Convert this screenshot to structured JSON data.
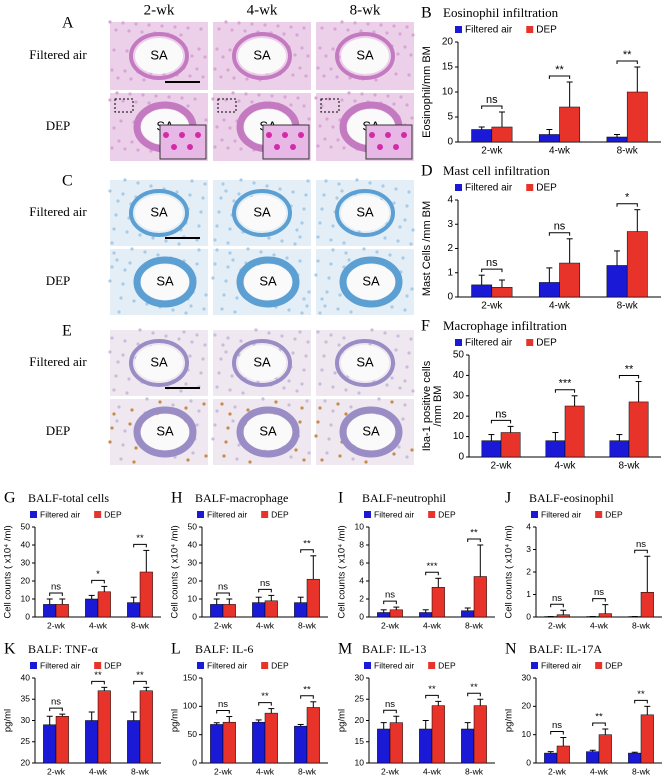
{
  "image_panels": {
    "columns": [
      "2-wk",
      "4-wk",
      "8-wk"
    ],
    "rows": [
      "Filtered air",
      "DEP"
    ],
    "lumen_label": "SA",
    "letters": [
      "A",
      "C",
      "E"
    ]
  },
  "chart_data": [
    {
      "type": "bar",
      "panel": "B",
      "title": "Eosinophil infiltration",
      "ylabel": [
        "Eosinophil/mm BM"
      ],
      "categories": [
        "2-wk",
        "4-wk",
        "8-wk"
      ],
      "series": [
        {
          "name": "Filtered air",
          "color": "#1a1ad6",
          "values": [
            2.5,
            1.5,
            1
          ],
          "errors": [
            0.5,
            1,
            0.5
          ]
        },
        {
          "name": "DEP",
          "color": "#e8332a",
          "values": [
            3,
            7,
            10
          ],
          "errors": [
            3,
            5,
            5
          ]
        }
      ],
      "significance": [
        "ns",
        "**",
        "**"
      ],
      "ylim": [
        0,
        20
      ],
      "yticks": [
        0,
        5,
        10,
        15,
        20
      ]
    },
    {
      "type": "bar",
      "panel": "D",
      "title": "Mast cell infiltration",
      "ylabel": [
        "Mast Cells /mm BM"
      ],
      "categories": [
        "2-wk",
        "4-wk",
        "8-wk"
      ],
      "series": [
        {
          "name": "Filtered air",
          "color": "#1a1ad6",
          "values": [
            0.5,
            0.6,
            1.3
          ],
          "errors": [
            0.4,
            0.6,
            0.6
          ]
        },
        {
          "name": "DEP",
          "color": "#e8332a",
          "values": [
            0.4,
            1.4,
            2.7
          ],
          "errors": [
            0.3,
            1,
            0.9
          ]
        }
      ],
      "significance": [
        "ns",
        "ns",
        "*"
      ],
      "ylim": [
        0,
        4
      ],
      "yticks": [
        0,
        1,
        2,
        3,
        4
      ]
    },
    {
      "type": "bar",
      "panel": "F",
      "title": "Macrophage infiltration",
      "ylabel": [
        "Iba-1 positive cells",
        "/mm BM"
      ],
      "categories": [
        "2-wk",
        "4-wk",
        "8-wk"
      ],
      "series": [
        {
          "name": "Filtered air",
          "color": "#1a1ad6",
          "values": [
            8,
            8,
            8
          ],
          "errors": [
            3,
            4,
            3
          ]
        },
        {
          "name": "DEP",
          "color": "#e8332a",
          "values": [
            12,
            25,
            27
          ],
          "errors": [
            3,
            5,
            10
          ]
        }
      ],
      "significance": [
        "ns",
        "***",
        "**"
      ],
      "ylim": [
        0,
        50
      ],
      "yticks": [
        0,
        10,
        20,
        30,
        40,
        50
      ]
    },
    {
      "type": "bar",
      "panel": "G",
      "title": "BALF-total cells",
      "ylabel": [
        "Cell counts ( x10⁴ /ml)"
      ],
      "categories": [
        "2-wk",
        "4-wk",
        "8-wk"
      ],
      "series": [
        {
          "name": "Filtered air",
          "color": "#1a1ad6",
          "values": [
            7,
            10,
            8
          ],
          "errors": [
            3,
            2,
            3
          ]
        },
        {
          "name": "DEP",
          "color": "#e8332a",
          "values": [
            7,
            14,
            25
          ],
          "errors": [
            3,
            3,
            12
          ]
        }
      ],
      "significance": [
        "ns",
        "*",
        "**"
      ],
      "ylim": [
        0,
        50
      ],
      "yticks": [
        0,
        10,
        20,
        30,
        40,
        50
      ]
    },
    {
      "type": "bar",
      "panel": "H",
      "title": "BALF-macrophage",
      "ylabel": [
        "Cell counts ( x10⁴ /ml)"
      ],
      "categories": [
        "2-wk",
        "4-wk",
        "8-wk"
      ],
      "series": [
        {
          "name": "Filtered air",
          "color": "#1a1ad6",
          "values": [
            7,
            8,
            8
          ],
          "errors": [
            3,
            3,
            3
          ]
        },
        {
          "name": "DEP",
          "color": "#e8332a",
          "values": [
            7,
            9,
            21
          ],
          "errors": [
            3,
            3,
            13
          ]
        }
      ],
      "significance": [
        "ns",
        "ns",
        "**"
      ],
      "ylim": [
        0,
        50
      ],
      "yticks": [
        0,
        10,
        20,
        30,
        40,
        50
      ]
    },
    {
      "type": "bar",
      "panel": "I",
      "title": "BALF-neutrophil",
      "ylabel": [
        "Cell counts ( x10⁴ /ml)"
      ],
      "categories": [
        "2-wk",
        "4-wk",
        "8-wk"
      ],
      "series": [
        {
          "name": "Filtered air",
          "color": "#1a1ad6",
          "values": [
            0.5,
            0.5,
            0.7
          ],
          "errors": [
            0.3,
            0.3,
            0.3
          ]
        },
        {
          "name": "DEP",
          "color": "#e8332a",
          "values": [
            0.8,
            3.3,
            4.5
          ],
          "errors": [
            0.3,
            1,
            3.5
          ]
        }
      ],
      "significance": [
        "ns",
        "***",
        "**"
      ],
      "ylim": [
        0,
        10
      ],
      "yticks": [
        0,
        2,
        4,
        6,
        8,
        10
      ]
    },
    {
      "type": "bar",
      "panel": "J",
      "title": "BALF-eosinophil",
      "ylabel": [
        "Cell counts ( x10⁴ /ml)"
      ],
      "categories": [
        "2-wk",
        "4-wk",
        "8-wk"
      ],
      "series": [
        {
          "name": "Filtered air",
          "color": "#1a1ad6",
          "values": [
            0.02,
            0.02,
            0.02
          ],
          "errors": [
            0,
            0,
            0
          ]
        },
        {
          "name": "DEP",
          "color": "#e8332a",
          "values": [
            0.1,
            0.15,
            1.1
          ],
          "errors": [
            0.2,
            0.4,
            1.6
          ]
        }
      ],
      "significance": [
        "ns",
        "ns",
        "ns"
      ],
      "ylim": [
        0,
        4
      ],
      "yticks": [
        0,
        1,
        2,
        3,
        4
      ]
    },
    {
      "type": "bar",
      "panel": "K",
      "title": "BALF: TNF-α",
      "ylabel": [
        "pg/ml"
      ],
      "categories": [
        "2-wk",
        "4-wk",
        "8-wk"
      ],
      "series": [
        {
          "name": "Filtered air",
          "color": "#1a1ad6",
          "values": [
            29,
            30,
            30
          ],
          "errors": [
            2,
            2,
            2
          ]
        },
        {
          "name": "DEP",
          "color": "#e8332a",
          "values": [
            31,
            37,
            37
          ],
          "errors": [
            0.5,
            0.8,
            0.8
          ]
        }
      ],
      "significance": [
        "ns",
        "**",
        "**"
      ],
      "ylim": [
        20,
        40
      ],
      "yticks": [
        20,
        25,
        30,
        35,
        40
      ]
    },
    {
      "type": "bar",
      "panel": "L",
      "title": "BALF: IL-6",
      "ylabel": [
        "pg/ml"
      ],
      "categories": [
        "2-wk",
        "4-wk",
        "8-wk"
      ],
      "series": [
        {
          "name": "Filtered air",
          "color": "#1a1ad6",
          "values": [
            68,
            72,
            65
          ],
          "errors": [
            3,
            4,
            3
          ]
        },
        {
          "name": "DEP",
          "color": "#e8332a",
          "values": [
            72,
            88,
            98
          ],
          "errors": [
            10,
            8,
            10
          ]
        }
      ],
      "significance": [
        "ns",
        "**",
        "**"
      ],
      "ylim": [
        0,
        150
      ],
      "yticks": [
        0,
        50,
        100,
        150
      ]
    },
    {
      "type": "bar",
      "panel": "M",
      "title": "BALF: IL-13",
      "ylabel": [
        "pg/ml"
      ],
      "categories": [
        "2-wk",
        "4-wk",
        "8-wk"
      ],
      "series": [
        {
          "name": "Filtered air",
          "color": "#1a1ad6",
          "values": [
            18,
            18,
            18
          ],
          "errors": [
            1.5,
            2,
            1.5
          ]
        },
        {
          "name": "DEP",
          "color": "#e8332a",
          "values": [
            19.5,
            23.5,
            23.5
          ],
          "errors": [
            1.5,
            1,
            1.5
          ]
        }
      ],
      "significance": [
        "ns",
        "**",
        "**"
      ],
      "ylim": [
        10,
        30
      ],
      "yticks": [
        10,
        15,
        20,
        25,
        30
      ]
    },
    {
      "type": "bar",
      "panel": "N",
      "title": "BALF: IL-17A",
      "ylabel": [
        "pg/ml"
      ],
      "categories": [
        "2-wk",
        "4-wk",
        "8-wk"
      ],
      "series": [
        {
          "name": "Filtered air",
          "color": "#1a1ad6",
          "values": [
            3.5,
            4,
            3.5
          ],
          "errors": [
            0.5,
            0.5,
            0.3
          ]
        },
        {
          "name": "DEP",
          "color": "#e8332a",
          "values": [
            6,
            10,
            17
          ],
          "errors": [
            3,
            2,
            3
          ]
        }
      ],
      "significance": [
        "ns",
        "**",
        "**"
      ],
      "ylim": [
        0,
        30
      ],
      "yticks": [
        0,
        10,
        20,
        30
      ]
    }
  ]
}
